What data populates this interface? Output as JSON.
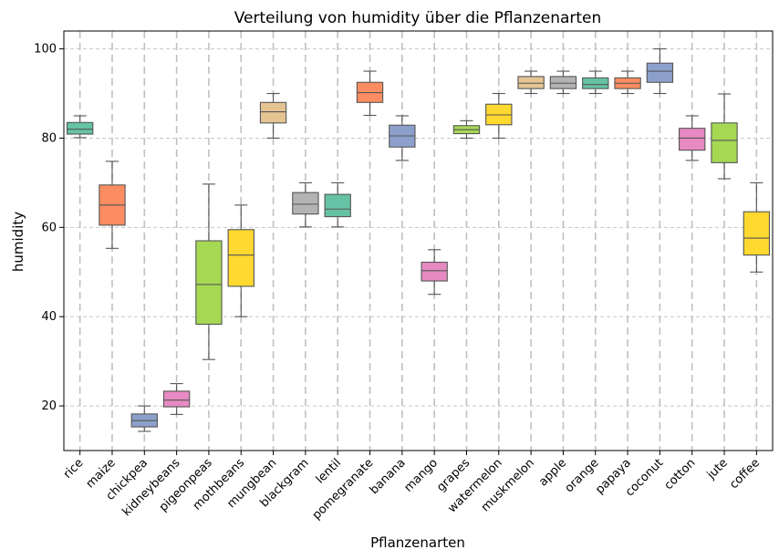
{
  "chart_data": {
    "type": "boxplot",
    "title": "Verteilung von humidity über die Pflanzenarten",
    "xlabel": "Pflanzenarten",
    "ylabel": "humidity",
    "ylim": [
      10,
      104
    ],
    "yticks": [
      20,
      40,
      60,
      80,
      100
    ],
    "grid": true,
    "categories": [
      "rice",
      "maize",
      "chickpea",
      "kidneybeans",
      "pigeonpeas",
      "mothbeans",
      "mungbean",
      "blackgram",
      "lentil",
      "pomegranate",
      "banana",
      "mango",
      "grapes",
      "watermelon",
      "muskmelon",
      "apple",
      "orange",
      "papaya",
      "coconut",
      "cotton",
      "jute",
      "coffee"
    ],
    "boxes": [
      {
        "category": "rice",
        "min": 80.1,
        "q1": 80.9,
        "median": 82.0,
        "q3": 83.5,
        "max": 85.0
      },
      {
        "category": "maize",
        "min": 55.3,
        "q1": 60.5,
        "median": 65.0,
        "q3": 69.5,
        "max": 74.8
      },
      {
        "category": "chickpea",
        "min": 14.3,
        "q1": 15.3,
        "median": 16.7,
        "q3": 18.2,
        "max": 20.0
      },
      {
        "category": "kidneybeans",
        "min": 18.1,
        "q1": 19.8,
        "median": 21.3,
        "q3": 23.3,
        "max": 25.0
      },
      {
        "category": "pigeonpeas",
        "min": 30.4,
        "q1": 38.3,
        "median": 47.2,
        "q3": 57.0,
        "max": 69.7
      },
      {
        "category": "mothbeans",
        "min": 40.0,
        "q1": 46.8,
        "median": 53.8,
        "q3": 59.5,
        "max": 65.0
      },
      {
        "category": "mungbean",
        "min": 80.0,
        "q1": 83.4,
        "median": 85.9,
        "q3": 88.0,
        "max": 90.0
      },
      {
        "category": "blackgram",
        "min": 60.1,
        "q1": 63.0,
        "median": 65.2,
        "q3": 67.8,
        "max": 70.0
      },
      {
        "category": "lentil",
        "min": 60.1,
        "q1": 62.4,
        "median": 64.1,
        "q3": 67.4,
        "max": 70.0
      },
      {
        "category": "pomegranate",
        "min": 85.1,
        "q1": 88.0,
        "median": 90.2,
        "q3": 92.5,
        "max": 95.0
      },
      {
        "category": "banana",
        "min": 75.0,
        "q1": 78.0,
        "median": 80.5,
        "q3": 82.9,
        "max": 85.0
      },
      {
        "category": "mango",
        "min": 45.0,
        "q1": 48.0,
        "median": 50.3,
        "q3": 52.2,
        "max": 55.0
      },
      {
        "category": "grapes",
        "min": 80.0,
        "q1": 81.0,
        "median": 81.9,
        "q3": 82.8,
        "max": 83.9
      },
      {
        "category": "watermelon",
        "min": 80.0,
        "q1": 83.0,
        "median": 85.2,
        "q3": 87.6,
        "max": 90.0
      },
      {
        "category": "muskmelon",
        "min": 90.0,
        "q1": 91.1,
        "median": 92.3,
        "q3": 93.8,
        "max": 95.0
      },
      {
        "category": "apple",
        "min": 90.0,
        "q1": 91.1,
        "median": 92.3,
        "q3": 93.8,
        "max": 95.0
      },
      {
        "category": "orange",
        "min": 90.0,
        "q1": 91.1,
        "median": 92.0,
        "q3": 93.5,
        "max": 95.0
      },
      {
        "category": "papaya",
        "min": 90.0,
        "q1": 91.1,
        "median": 92.3,
        "q3": 93.5,
        "max": 95.0
      },
      {
        "category": "coconut",
        "min": 90.0,
        "q1": 92.5,
        "median": 95.0,
        "q3": 96.8,
        "max": 100.0
      },
      {
        "category": "cotton",
        "min": 75.0,
        "q1": 77.3,
        "median": 80.0,
        "q3": 82.2,
        "max": 85.0
      },
      {
        "category": "jute",
        "min": 70.9,
        "q1": 74.5,
        "median": 79.5,
        "q3": 83.4,
        "max": 89.9
      },
      {
        "category": "coffee",
        "min": 50.0,
        "q1": 53.8,
        "median": 57.6,
        "q3": 63.5,
        "max": 70.0
      }
    ],
    "colors": [
      "#66c2a5",
      "#fc8d62",
      "#8da0cb",
      "#e78ac3",
      "#a6d854",
      "#ffd92f",
      "#e5c494",
      "#b3b3b3"
    ],
    "box_alpha_note": "palette Set2 muted"
  }
}
